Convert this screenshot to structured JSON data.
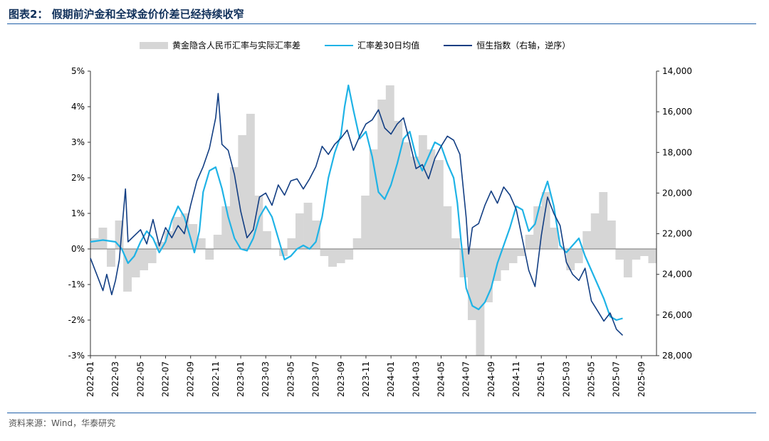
{
  "figure": {
    "title": "图表2：  假期前沪金和全球金价价差已经持续收窄",
    "source": "资料来源：Wind，华泰研究"
  },
  "colors": {
    "bars": "#d6d6d6",
    "ma30": "#1fb3e6",
    "hsi": "#123e83",
    "rule": "#1f5fa8"
  },
  "chart_data": {
    "type": "area",
    "left_axis": {
      "unit": "%",
      "min": -3,
      "max": 5,
      "ticks": [
        "5%",
        "4%",
        "3%",
        "2%",
        "1%",
        "0%",
        "-1%",
        "-2%",
        "-3%"
      ]
    },
    "right_axis": {
      "min": 14000,
      "max": 28000,
      "reversed": true,
      "ticks": [
        "14,000",
        "16,000",
        "18,000",
        "20,000",
        "22,000",
        "24,000",
        "26,000",
        "28,000"
      ]
    },
    "x_ticks": [
      "2022-01",
      "2022-03",
      "2022-05",
      "2022-07",
      "2022-09",
      "2022-11",
      "2023-01",
      "2023-03",
      "2023-05",
      "2023-07",
      "2023-09",
      "2023-11",
      "2024-01",
      "2024-03",
      "2024-05",
      "2024-07",
      "2024-09",
      "2024-11",
      "2025-01",
      "2025-03",
      "2025-05",
      "2025-07",
      "2025-09"
    ],
    "x_range": [
      "2022-01",
      "2025-10"
    ],
    "legend": [
      "黄金隐含人民币汇率与实际汇率差",
      "汇率差30日均值",
      "恒生指数（右轴，逆序）"
    ],
    "series": [
      {
        "name": "黄金隐含人民币汇率与实际汇率差",
        "kind": "bar",
        "axis": "left",
        "points": [
          [
            0,
            0.3
          ],
          [
            1,
            0.6
          ],
          [
            2,
            -0.5
          ],
          [
            3,
            0.8
          ],
          [
            4,
            -1.2
          ],
          [
            5,
            -0.8
          ],
          [
            6,
            -0.6
          ],
          [
            7,
            -0.4
          ],
          [
            8,
            0.2
          ],
          [
            9,
            0.5
          ],
          [
            10,
            0.9
          ],
          [
            11,
            1.0
          ],
          [
            12,
            0.7
          ],
          [
            13,
            0.3
          ],
          [
            14,
            -0.3
          ],
          [
            15,
            0.4
          ],
          [
            16,
            1.2
          ],
          [
            17,
            2.3
          ],
          [
            18,
            3.2
          ],
          [
            19,
            3.8
          ],
          [
            20,
            1.5
          ],
          [
            21,
            0.5
          ],
          [
            22,
            0.0
          ],
          [
            23,
            -0.2
          ],
          [
            24,
            0.3
          ],
          [
            25,
            1.0
          ],
          [
            26,
            1.3
          ],
          [
            27,
            0.8
          ],
          [
            28,
            -0.2
          ],
          [
            29,
            -0.5
          ],
          [
            30,
            -0.4
          ],
          [
            31,
            -0.3
          ],
          [
            32,
            0.3
          ],
          [
            33,
            1.5
          ],
          [
            34,
            2.8
          ],
          [
            35,
            4.2
          ],
          [
            36,
            4.6
          ],
          [
            37,
            3.6
          ],
          [
            38,
            3.0
          ],
          [
            39,
            2.6
          ],
          [
            40,
            3.2
          ],
          [
            41,
            2.8
          ],
          [
            42,
            2.5
          ],
          [
            43,
            1.2
          ],
          [
            44,
            0.3
          ],
          [
            45,
            -0.8
          ],
          [
            46,
            -2.0
          ],
          [
            47,
            -3.0
          ],
          [
            48,
            -1.5
          ],
          [
            49,
            -0.9
          ],
          [
            50,
            -0.6
          ],
          [
            51,
            -0.4
          ],
          [
            52,
            -0.2
          ],
          [
            53,
            0.4
          ],
          [
            54,
            1.2
          ],
          [
            55,
            1.6
          ],
          [
            56,
            0.6
          ],
          [
            57,
            0.0
          ],
          [
            58,
            -0.6
          ],
          [
            59,
            -0.4
          ],
          [
            60,
            0.5
          ],
          [
            61,
            1.0
          ],
          [
            62,
            1.6
          ],
          [
            63,
            0.8
          ],
          [
            64,
            -0.3
          ],
          [
            65,
            -0.8
          ],
          [
            66,
            -0.3
          ],
          [
            67,
            -0.2
          ],
          [
            68,
            -0.4
          ]
        ]
      },
      {
        "name": "汇率差30日均值",
        "kind": "line",
        "axis": "left",
        "points": [
          [
            0,
            0.2
          ],
          [
            1,
            0.25
          ],
          [
            2,
            0.2
          ],
          [
            2.5,
            0.0
          ],
          [
            3,
            -0.4
          ],
          [
            3.5,
            -0.2
          ],
          [
            4,
            0.2
          ],
          [
            4.5,
            0.5
          ],
          [
            5,
            0.3
          ],
          [
            5.5,
            -0.1
          ],
          [
            6,
            0.2
          ],
          [
            6.5,
            0.8
          ],
          [
            7,
            1.2
          ],
          [
            7.5,
            0.9
          ],
          [
            8,
            0.3
          ],
          [
            8.3,
            -0.1
          ],
          [
            8.7,
            0.5
          ],
          [
            9,
            1.6
          ],
          [
            9.5,
            2.2
          ],
          [
            10,
            2.3
          ],
          [
            10.5,
            1.7
          ],
          [
            11,
            0.9
          ],
          [
            11.5,
            0.3
          ],
          [
            12,
            0.0
          ],
          [
            12.5,
            -0.05
          ],
          [
            13,
            0.3
          ],
          [
            13.5,
            0.9
          ],
          [
            14,
            1.2
          ],
          [
            14.5,
            0.9
          ],
          [
            15,
            0.3
          ],
          [
            15.5,
            -0.3
          ],
          [
            16,
            -0.2
          ],
          [
            16.5,
            0.0
          ],
          [
            17,
            0.1
          ],
          [
            17.5,
            0.0
          ],
          [
            18,
            0.2
          ],
          [
            18.5,
            0.9
          ],
          [
            19,
            2.0
          ],
          [
            19.5,
            2.7
          ],
          [
            20,
            3.2
          ],
          [
            20.3,
            4.0
          ],
          [
            20.6,
            4.6
          ],
          [
            21,
            3.9
          ],
          [
            21.5,
            3.1
          ],
          [
            22,
            3.3
          ],
          [
            22.5,
            2.6
          ],
          [
            23,
            1.6
          ],
          [
            23.5,
            1.4
          ],
          [
            24,
            1.8
          ],
          [
            24.5,
            2.4
          ],
          [
            25,
            3.1
          ],
          [
            25.5,
            3.3
          ],
          [
            26,
            2.6
          ],
          [
            26.5,
            2.2
          ],
          [
            27,
            2.6
          ],
          [
            27.5,
            3.0
          ],
          [
            28,
            2.9
          ],
          [
            28.5,
            2.4
          ],
          [
            29,
            2.0
          ],
          [
            29.3,
            1.3
          ],
          [
            29.6,
            0.2
          ],
          [
            30,
            -1.1
          ],
          [
            30.5,
            -1.6
          ],
          [
            31,
            -1.7
          ],
          [
            31.5,
            -1.5
          ],
          [
            32,
            -1.1
          ],
          [
            32.5,
            -0.4
          ],
          [
            33,
            0.1
          ],
          [
            33.5,
            0.6
          ],
          [
            34,
            1.2
          ],
          [
            34.5,
            1.1
          ],
          [
            35,
            0.5
          ],
          [
            35.5,
            0.7
          ],
          [
            36,
            1.4
          ],
          [
            36.5,
            1.9
          ],
          [
            37,
            1.2
          ],
          [
            37.5,
            0.1
          ],
          [
            38,
            -0.1
          ],
          [
            38.5,
            0.1
          ],
          [
            39,
            0.3
          ],
          [
            39.5,
            -0.2
          ],
          [
            40,
            -0.6
          ],
          [
            40.5,
            -1.0
          ],
          [
            41,
            -1.4
          ],
          [
            41.5,
            -1.9
          ],
          [
            42,
            -2.0
          ],
          [
            42.5,
            -1.95
          ]
        ]
      },
      {
        "name": "恒生指数（右轴，逆序）",
        "kind": "line",
        "axis": "right",
        "points": [
          [
            0,
            23200
          ],
          [
            0.5,
            24000
          ],
          [
            1,
            24800
          ],
          [
            1.3,
            24000
          ],
          [
            1.7,
            25000
          ],
          [
            2,
            24300
          ],
          [
            2.3,
            23300
          ],
          [
            2.6,
            21200
          ],
          [
            2.8,
            19800
          ],
          [
            3,
            22400
          ],
          [
            3.5,
            22100
          ],
          [
            4,
            21800
          ],
          [
            4.5,
            22500
          ],
          [
            5,
            21300
          ],
          [
            5.5,
            22600
          ],
          [
            6,
            21700
          ],
          [
            6.5,
            22200
          ],
          [
            7,
            21600
          ],
          [
            7.5,
            22000
          ],
          [
            8,
            20600
          ],
          [
            8.5,
            19400
          ],
          [
            9,
            18700
          ],
          [
            9.5,
            17800
          ],
          [
            10,
            16300
          ],
          [
            10.2,
            15100
          ],
          [
            10.5,
            17600
          ],
          [
            11,
            17900
          ],
          [
            11.5,
            19100
          ],
          [
            12,
            20900
          ],
          [
            12.5,
            22200
          ],
          [
            13,
            21800
          ],
          [
            13.5,
            20200
          ],
          [
            14,
            20000
          ],
          [
            14.5,
            20600
          ],
          [
            15,
            19600
          ],
          [
            15.5,
            20100
          ],
          [
            16,
            19400
          ],
          [
            16.5,
            19300
          ],
          [
            17,
            19800
          ],
          [
            17.5,
            19300
          ],
          [
            18,
            18700
          ],
          [
            18.5,
            17700
          ],
          [
            19,
            18100
          ],
          [
            19.5,
            17600
          ],
          [
            20,
            17300
          ],
          [
            20.5,
            16900
          ],
          [
            21,
            17900
          ],
          [
            21.5,
            17200
          ],
          [
            22,
            16600
          ],
          [
            22.5,
            16400
          ],
          [
            23,
            15900
          ],
          [
            23.5,
            16800
          ],
          [
            24,
            17100
          ],
          [
            24.5,
            16600
          ],
          [
            25,
            16300
          ],
          [
            25.5,
            17500
          ],
          [
            26,
            18800
          ],
          [
            26.5,
            18600
          ],
          [
            27,
            19300
          ],
          [
            27.5,
            18300
          ],
          [
            28,
            17700
          ],
          [
            28.5,
            17200
          ],
          [
            29,
            17400
          ],
          [
            29.5,
            18100
          ],
          [
            30,
            21200
          ],
          [
            30.2,
            23000
          ],
          [
            30.5,
            21700
          ],
          [
            31,
            21500
          ],
          [
            31.5,
            20600
          ],
          [
            32,
            19900
          ],
          [
            32.5,
            20500
          ],
          [
            33,
            19700
          ],
          [
            33.5,
            20100
          ],
          [
            34,
            20800
          ],
          [
            34.5,
            22300
          ],
          [
            35,
            23800
          ],
          [
            35.5,
            24600
          ],
          [
            36,
            22100
          ],
          [
            36.5,
            20200
          ],
          [
            37,
            21000
          ],
          [
            37.5,
            21600
          ],
          [
            38,
            23400
          ],
          [
            38.5,
            24000
          ],
          [
            39,
            24300
          ],
          [
            39.5,
            23700
          ],
          [
            40,
            25300
          ],
          [
            40.5,
            25800
          ],
          [
            41,
            26300
          ],
          [
            41.5,
            25900
          ],
          [
            42,
            26700
          ],
          [
            42.5,
            27000
          ]
        ]
      }
    ]
  }
}
